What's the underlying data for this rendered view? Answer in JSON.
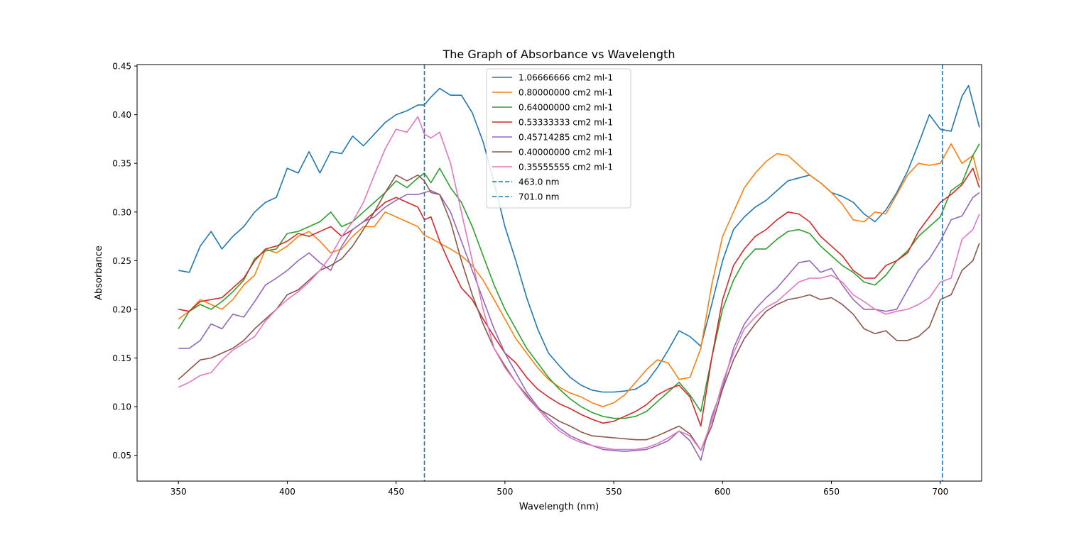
{
  "chart_data": {
    "type": "line",
    "title": "The Graph of Absorbance vs Wavelength",
    "xlabel": "Wavelength (nm)",
    "ylabel": "Absorbance",
    "xlim": [
      331,
      719
    ],
    "ylim": [
      0.0235,
      0.4515
    ],
    "xticks": [
      350,
      400,
      450,
      500,
      550,
      600,
      650,
      700
    ],
    "yticks": [
      0.05,
      0.1,
      0.15,
      0.2,
      0.25,
      0.3,
      0.35,
      0.4,
      0.45
    ],
    "grid": false,
    "legend_position": "upper center",
    "series": [
      {
        "name": "1.06666666 cm2 ml-1",
        "color": "#1f77b4",
        "x": [
          350,
          355,
          360,
          365,
          370,
          375,
          380,
          385,
          390,
          395,
          400,
          405,
          410,
          415,
          420,
          425,
          430,
          435,
          440,
          445,
          450,
          455,
          460,
          463,
          466,
          470,
          475,
          480,
          485,
          490,
          495,
          500,
          505,
          510,
          515,
          520,
          525,
          530,
          535,
          540,
          545,
          550,
          555,
          560,
          565,
          570,
          575,
          580,
          585,
          590,
          595,
          600,
          605,
          610,
          615,
          620,
          625,
          630,
          635,
          640,
          645,
          650,
          655,
          660,
          665,
          670,
          675,
          680,
          685,
          690,
          695,
          700,
          705,
          710,
          713,
          718
        ],
        "y": [
          0.24,
          0.238,
          0.265,
          0.28,
          0.262,
          0.275,
          0.285,
          0.3,
          0.31,
          0.315,
          0.345,
          0.34,
          0.362,
          0.34,
          0.362,
          0.36,
          0.378,
          0.368,
          0.38,
          0.392,
          0.4,
          0.404,
          0.41,
          0.41,
          0.418,
          0.427,
          0.42,
          0.42,
          0.402,
          0.372,
          0.33,
          0.285,
          0.25,
          0.212,
          0.18,
          0.155,
          0.142,
          0.13,
          0.122,
          0.117,
          0.115,
          0.115,
          0.116,
          0.118,
          0.125,
          0.14,
          0.158,
          0.178,
          0.172,
          0.162,
          0.205,
          0.25,
          0.282,
          0.295,
          0.305,
          0.312,
          0.322,
          0.332,
          0.335,
          0.338,
          0.33,
          0.32,
          0.316,
          0.31,
          0.298,
          0.29,
          0.302,
          0.32,
          0.342,
          0.37,
          0.4,
          0.385,
          0.383,
          0.419,
          0.43,
          0.387
        ]
      },
      {
        "name": "0.80000000 cm2 ml-1",
        "color": "#ff7f0e",
        "x": [
          350,
          355,
          360,
          365,
          370,
          375,
          380,
          385,
          390,
          395,
          400,
          405,
          410,
          415,
          420,
          425,
          430,
          435,
          440,
          445,
          450,
          455,
          460,
          463,
          466,
          470,
          475,
          480,
          485,
          490,
          495,
          500,
          505,
          510,
          515,
          520,
          525,
          530,
          535,
          540,
          545,
          550,
          555,
          560,
          565,
          570,
          575,
          580,
          585,
          590,
          595,
          600,
          605,
          610,
          615,
          620,
          625,
          630,
          635,
          640,
          645,
          650,
          655,
          660,
          665,
          670,
          675,
          680,
          685,
          690,
          695,
          700,
          705,
          710,
          715,
          718
        ],
        "y": [
          0.19,
          0.198,
          0.21,
          0.205,
          0.2,
          0.21,
          0.225,
          0.235,
          0.262,
          0.258,
          0.265,
          0.275,
          0.28,
          0.27,
          0.258,
          0.262,
          0.275,
          0.285,
          0.285,
          0.3,
          0.295,
          0.29,
          0.285,
          0.276,
          0.273,
          0.268,
          0.262,
          0.255,
          0.245,
          0.23,
          0.21,
          0.19,
          0.17,
          0.155,
          0.14,
          0.128,
          0.12,
          0.114,
          0.11,
          0.104,
          0.1,
          0.104,
          0.112,
          0.125,
          0.138,
          0.148,
          0.145,
          0.128,
          0.13,
          0.16,
          0.225,
          0.275,
          0.3,
          0.325,
          0.34,
          0.352,
          0.36,
          0.358,
          0.348,
          0.338,
          0.33,
          0.32,
          0.308,
          0.292,
          0.29,
          0.3,
          0.298,
          0.318,
          0.338,
          0.35,
          0.348,
          0.35,
          0.37,
          0.35,
          0.358,
          0.332
        ]
      },
      {
        "name": "0.64000000 cm2 ml-1",
        "color": "#2ca02c",
        "x": [
          350,
          355,
          360,
          365,
          370,
          375,
          380,
          385,
          390,
          395,
          400,
          405,
          410,
          415,
          420,
          425,
          430,
          435,
          440,
          445,
          450,
          455,
          460,
          463,
          466,
          470,
          475,
          480,
          485,
          490,
          495,
          500,
          505,
          510,
          515,
          520,
          525,
          530,
          535,
          540,
          545,
          550,
          555,
          560,
          565,
          570,
          575,
          580,
          585,
          590,
          595,
          600,
          605,
          610,
          615,
          620,
          625,
          630,
          635,
          640,
          645,
          650,
          655,
          660,
          665,
          670,
          675,
          680,
          685,
          690,
          695,
          700,
          705,
          710,
          715,
          718
        ],
        "y": [
          0.18,
          0.198,
          0.205,
          0.2,
          0.208,
          0.218,
          0.23,
          0.252,
          0.26,
          0.262,
          0.278,
          0.28,
          0.285,
          0.29,
          0.3,
          0.285,
          0.29,
          0.3,
          0.31,
          0.32,
          0.332,
          0.325,
          0.335,
          0.34,
          0.33,
          0.345,
          0.325,
          0.31,
          0.285,
          0.255,
          0.225,
          0.2,
          0.18,
          0.16,
          0.145,
          0.13,
          0.118,
          0.108,
          0.1,
          0.094,
          0.09,
          0.088,
          0.088,
          0.09,
          0.095,
          0.105,
          0.115,
          0.125,
          0.112,
          0.095,
          0.15,
          0.2,
          0.23,
          0.25,
          0.262,
          0.262,
          0.272,
          0.28,
          0.282,
          0.278,
          0.265,
          0.255,
          0.245,
          0.238,
          0.228,
          0.225,
          0.235,
          0.25,
          0.26,
          0.275,
          0.285,
          0.295,
          0.322,
          0.33,
          0.358,
          0.37
        ]
      },
      {
        "name": "0.53333333 cm2 ml-1",
        "color": "#d62728",
        "x": [
          350,
          355,
          360,
          365,
          370,
          375,
          380,
          385,
          390,
          395,
          400,
          405,
          410,
          415,
          420,
          425,
          430,
          435,
          440,
          445,
          450,
          455,
          460,
          463,
          466,
          470,
          475,
          480,
          485,
          490,
          495,
          500,
          505,
          510,
          515,
          520,
          525,
          530,
          535,
          540,
          545,
          550,
          555,
          560,
          565,
          570,
          575,
          580,
          585,
          590,
          595,
          600,
          605,
          610,
          615,
          620,
          625,
          630,
          635,
          640,
          645,
          650,
          655,
          660,
          665,
          670,
          675,
          680,
          685,
          690,
          695,
          700,
          705,
          710,
          715,
          718
        ],
        "y": [
          0.2,
          0.198,
          0.208,
          0.21,
          0.212,
          0.222,
          0.232,
          0.25,
          0.262,
          0.265,
          0.27,
          0.278,
          0.275,
          0.28,
          0.285,
          0.275,
          0.282,
          0.29,
          0.3,
          0.31,
          0.315,
          0.31,
          0.305,
          0.292,
          0.295,
          0.27,
          0.245,
          0.222,
          0.21,
          0.19,
          0.172,
          0.155,
          0.145,
          0.13,
          0.118,
          0.11,
          0.103,
          0.098,
          0.092,
          0.087,
          0.083,
          0.085,
          0.09,
          0.095,
          0.102,
          0.112,
          0.118,
          0.122,
          0.11,
          0.08,
          0.15,
          0.21,
          0.245,
          0.262,
          0.275,
          0.282,
          0.292,
          0.3,
          0.298,
          0.29,
          0.275,
          0.265,
          0.255,
          0.24,
          0.232,
          0.232,
          0.245,
          0.25,
          0.258,
          0.28,
          0.295,
          0.31,
          0.318,
          0.328,
          0.345,
          0.325
        ]
      },
      {
        "name": "0.45714285 cm2 ml-1",
        "color": "#9467bd",
        "x": [
          350,
          355,
          360,
          365,
          370,
          375,
          380,
          385,
          390,
          395,
          400,
          405,
          410,
          415,
          420,
          425,
          430,
          435,
          440,
          445,
          450,
          455,
          460,
          463,
          466,
          470,
          475,
          480,
          485,
          490,
          495,
          500,
          505,
          510,
          515,
          520,
          525,
          530,
          535,
          540,
          545,
          550,
          555,
          560,
          565,
          570,
          575,
          580,
          585,
          590,
          595,
          600,
          605,
          610,
          615,
          620,
          625,
          630,
          635,
          640,
          645,
          650,
          655,
          660,
          665,
          670,
          675,
          680,
          685,
          690,
          695,
          700,
          705,
          710,
          715,
          718
        ],
        "y": [
          0.16,
          0.16,
          0.168,
          0.185,
          0.18,
          0.195,
          0.192,
          0.208,
          0.225,
          0.232,
          0.24,
          0.25,
          0.258,
          0.248,
          0.24,
          0.265,
          0.282,
          0.29,
          0.295,
          0.305,
          0.312,
          0.318,
          0.318,
          0.32,
          0.322,
          0.318,
          0.3,
          0.27,
          0.24,
          0.21,
          0.18,
          0.155,
          0.135,
          0.115,
          0.1,
          0.088,
          0.078,
          0.07,
          0.065,
          0.06,
          0.056,
          0.055,
          0.054,
          0.055,
          0.056,
          0.06,
          0.065,
          0.075,
          0.065,
          0.045,
          0.09,
          0.12,
          0.16,
          0.185,
          0.2,
          0.212,
          0.222,
          0.235,
          0.248,
          0.25,
          0.238,
          0.242,
          0.225,
          0.21,
          0.2,
          0.2,
          0.198,
          0.2,
          0.22,
          0.24,
          0.252,
          0.27,
          0.292,
          0.296,
          0.315,
          0.32
        ]
      },
      {
        "name": "0.40000000 cm2 ml-1",
        "color": "#8c564b",
        "x": [
          350,
          355,
          360,
          365,
          370,
          375,
          380,
          385,
          390,
          395,
          400,
          405,
          410,
          415,
          420,
          425,
          430,
          435,
          440,
          445,
          450,
          455,
          460,
          463,
          466,
          470,
          475,
          480,
          485,
          490,
          495,
          500,
          505,
          510,
          515,
          520,
          525,
          530,
          535,
          540,
          545,
          550,
          555,
          560,
          565,
          570,
          575,
          580,
          585,
          590,
          595,
          600,
          605,
          610,
          615,
          620,
          625,
          630,
          635,
          640,
          645,
          650,
          655,
          660,
          665,
          670,
          675,
          680,
          685,
          690,
          695,
          700,
          705,
          710,
          715,
          718
        ],
        "y": [
          0.128,
          0.138,
          0.148,
          0.15,
          0.155,
          0.16,
          0.168,
          0.18,
          0.19,
          0.2,
          0.215,
          0.22,
          0.23,
          0.24,
          0.245,
          0.252,
          0.265,
          0.282,
          0.3,
          0.32,
          0.338,
          0.332,
          0.338,
          0.332,
          0.32,
          0.318,
          0.29,
          0.25,
          0.215,
          0.185,
          0.16,
          0.142,
          0.125,
          0.112,
          0.098,
          0.092,
          0.085,
          0.08,
          0.074,
          0.07,
          0.069,
          0.068,
          0.067,
          0.066,
          0.066,
          0.07,
          0.075,
          0.08,
          0.072,
          0.055,
          0.08,
          0.118,
          0.148,
          0.17,
          0.185,
          0.198,
          0.205,
          0.21,
          0.212,
          0.215,
          0.21,
          0.212,
          0.205,
          0.195,
          0.18,
          0.175,
          0.178,
          0.168,
          0.168,
          0.172,
          0.182,
          0.21,
          0.215,
          0.24,
          0.25,
          0.268
        ]
      },
      {
        "name": "0.35555555 cm2 ml-1",
        "color": "#e377c2",
        "x": [
          350,
          355,
          360,
          365,
          370,
          375,
          380,
          385,
          390,
          395,
          400,
          405,
          410,
          415,
          420,
          425,
          430,
          435,
          440,
          445,
          450,
          455,
          460,
          463,
          466,
          470,
          475,
          480,
          485,
          490,
          495,
          500,
          505,
          510,
          515,
          520,
          525,
          530,
          535,
          540,
          545,
          550,
          555,
          560,
          565,
          570,
          575,
          580,
          585,
          590,
          595,
          600,
          605,
          610,
          615,
          620,
          625,
          630,
          635,
          640,
          645,
          650,
          655,
          660,
          665,
          670,
          675,
          680,
          685,
          690,
          695,
          700,
          705,
          710,
          715,
          718
        ],
        "y": [
          0.12,
          0.125,
          0.132,
          0.135,
          0.148,
          0.158,
          0.165,
          0.172,
          0.188,
          0.2,
          0.21,
          0.218,
          0.228,
          0.24,
          0.255,
          0.275,
          0.29,
          0.31,
          0.338,
          0.365,
          0.385,
          0.382,
          0.398,
          0.38,
          0.376,
          0.382,
          0.35,
          0.3,
          0.25,
          0.2,
          0.16,
          0.14,
          0.125,
          0.11,
          0.098,
          0.085,
          0.075,
          0.068,
          0.063,
          0.06,
          0.058,
          0.056,
          0.056,
          0.056,
          0.058,
          0.062,
          0.068,
          0.075,
          0.07,
          0.055,
          0.085,
          0.125,
          0.155,
          0.18,
          0.192,
          0.202,
          0.208,
          0.218,
          0.228,
          0.232,
          0.232,
          0.235,
          0.228,
          0.215,
          0.208,
          0.2,
          0.195,
          0.198,
          0.2,
          0.205,
          0.212,
          0.228,
          0.232,
          0.272,
          0.282,
          0.298
        ]
      }
    ],
    "vlines": [
      {
        "x": 463.0,
        "label": "463.0 nm",
        "color": "#1f77b4"
      },
      {
        "x": 701.0,
        "label": "701.0 nm",
        "color": "#1f77b4"
      }
    ]
  }
}
